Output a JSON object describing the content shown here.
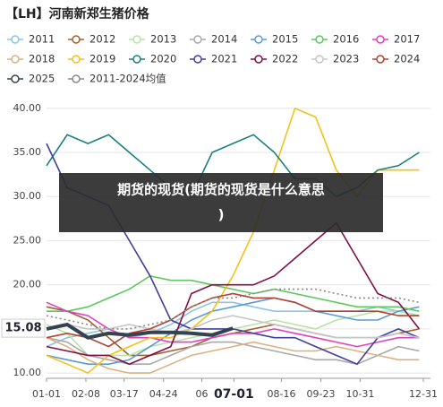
{
  "chart_data": {
    "type": "line",
    "title": "【LH】河南新郑生猪价格",
    "x": [
      0,
      20,
      40,
      60,
      80,
      100,
      120,
      140,
      160,
      180,
      200,
      220,
      240,
      260,
      280,
      300,
      320,
      340,
      360
    ],
    "xlim": [
      0,
      364
    ],
    "xticks": [
      {
        "value": 0,
        "label": "01-01"
      },
      {
        "value": 38,
        "label": "02-08"
      },
      {
        "value": 75,
        "label": "03-17"
      },
      {
        "value": 113,
        "label": "04-24"
      },
      {
        "value": 150,
        "label": "06"
      },
      {
        "value": 181,
        "label": "07-01"
      },
      {
        "value": 227,
        "label": "08-16"
      },
      {
        "value": 265,
        "label": "09-23"
      },
      {
        "value": 303,
        "label": "10-31"
      },
      {
        "value": 364,
        "label": "12-31"
      }
    ],
    "ylim": [
      9.4,
      41.5
    ],
    "yticks": [
      {
        "value": 10,
        "label": "10.00"
      },
      {
        "value": 15,
        "label": "15.00"
      },
      {
        "value": 20,
        "label": "20.00"
      },
      {
        "value": 25,
        "label": "25.00"
      },
      {
        "value": 30,
        "label": "30.00"
      },
      {
        "value": 35,
        "label": "35.00"
      },
      {
        "value": 40,
        "label": "40.00"
      }
    ],
    "grid": true,
    "current_value": 15.08,
    "series": [
      {
        "name": "2011",
        "color": "#8fc3e6",
        "values": [
          13,
          14,
          14.5,
          15,
          14,
          14.5,
          15.5,
          17,
          18,
          18,
          17.5,
          17,
          17,
          17,
          17,
          17,
          17.5,
          17,
          16.5
        ]
      },
      {
        "name": "2012",
        "color": "#a0622d",
        "values": [
          17.5,
          17,
          16,
          14,
          12,
          12,
          12.5,
          13,
          14,
          14.5,
          15,
          15.5,
          15,
          14.5,
          14,
          14,
          14,
          14.5,
          15
        ]
      },
      {
        "name": "2013",
        "color": "#b9e3a6",
        "values": [
          15.5,
          14.5,
          12,
          12,
          12,
          13,
          13.5,
          14,
          14.5,
          15,
          15.5,
          16,
          15.5,
          15,
          16,
          16.5,
          17,
          17,
          16.5
        ]
      },
      {
        "name": "2014",
        "color": "#a9a9a9",
        "values": [
          14,
          13.5,
          12,
          11.5,
          11,
          11,
          12,
          13,
          13.5,
          13.5,
          13,
          12.5,
          12,
          11.5,
          11.5,
          11,
          12,
          13,
          12.5
        ]
      },
      {
        "name": "2015",
        "color": "#5b9bd5",
        "values": [
          12,
          11.5,
          11,
          11,
          11.5,
          13,
          14.5,
          16,
          17,
          17.5,
          18,
          18.5,
          18,
          17,
          16.5,
          16,
          16,
          17,
          17.5
        ]
      },
      {
        "name": "2016",
        "color": "#5cc85c",
        "values": [
          17,
          17,
          17.5,
          18.5,
          19.5,
          21,
          20.5,
          20.5,
          20,
          19.5,
          19,
          19.5,
          19,
          18.5,
          18,
          17.5,
          17.5,
          17.5,
          17
        ]
      },
      {
        "name": "2017",
        "color": "#e040c0",
        "values": [
          18,
          17,
          16.5,
          15,
          14,
          14,
          13.5,
          13.5,
          14,
          14.5,
          14.5,
          15,
          14.5,
          14,
          13.5,
          13,
          13.5,
          14,
          14
        ]
      },
      {
        "name": "2018",
        "color": "#d9b27f",
        "values": [
          14,
          13,
          11.5,
          10.5,
          10,
          10,
          11,
          12,
          12.5,
          13,
          13.5,
          13,
          12.5,
          12.5,
          13,
          12.5,
          12,
          11.5,
          11.5
        ]
      },
      {
        "name": "2019",
        "color": "#f2c21b",
        "values": [
          12,
          11,
          10,
          12,
          13,
          14,
          14,
          15,
          17,
          21,
          26,
          33,
          40,
          39,
          33,
          30,
          33,
          33,
          33
        ]
      },
      {
        "name": "2020",
        "color": "#1a7f80",
        "values": [
          33.5,
          37,
          36,
          37,
          35,
          33,
          31,
          30,
          35,
          36,
          37,
          35,
          32,
          32,
          30,
          31,
          33,
          33.5,
          35
        ]
      },
      {
        "name": "2021",
        "color": "#3f3f9f",
        "values": [
          36,
          31,
          30,
          29,
          25,
          21,
          16,
          15,
          15,
          15,
          14.5,
          14,
          14,
          13,
          12,
          11,
          14,
          15,
          14
        ]
      },
      {
        "name": "2022",
        "color": "#7f0f45",
        "values": [
          13,
          12.5,
          12,
          12,
          11,
          12,
          13,
          19,
          20,
          20,
          20,
          21,
          23,
          25,
          27,
          23,
          19,
          18,
          15
        ]
      },
      {
        "name": "2023",
        "color": "#c6c6c6",
        "values": [
          15,
          15.5,
          15,
          15,
          15.5,
          15,
          14.5,
          15,
          16,
          16.5,
          16,
          15.5,
          15,
          14.5,
          14,
          14,
          14,
          14.5,
          14
        ]
      },
      {
        "name": "2024",
        "color": "#b04330",
        "values": [
          14,
          14.5,
          14,
          13,
          14.5,
          15,
          16,
          17.5,
          18.5,
          19,
          18.5,
          18.5,
          18,
          17,
          17,
          17,
          17,
          16.5,
          16.5
        ]
      },
      {
        "name": "2025",
        "color": "#34444f",
        "values": [
          15,
          15.5,
          14,
          14.5,
          14.3,
          14.6,
          14.6,
          14.5,
          14.3,
          15.08,
          null,
          null,
          null,
          null,
          null,
          null,
          null,
          null,
          null
        ]
      },
      {
        "name": "2011-2024均值",
        "color": "#8a8a8a",
        "values": [
          16.5,
          16,
          15.5,
          15,
          15,
          15.5,
          16,
          17.5,
          18.5,
          18.5,
          19,
          19.5,
          19.5,
          19.5,
          19,
          18.5,
          18.5,
          18.5,
          18
        ]
      }
    ]
  },
  "overlay": {
    "lines": [
      "期货的现货(期货的现货是什么意思",
      ")"
    ]
  }
}
